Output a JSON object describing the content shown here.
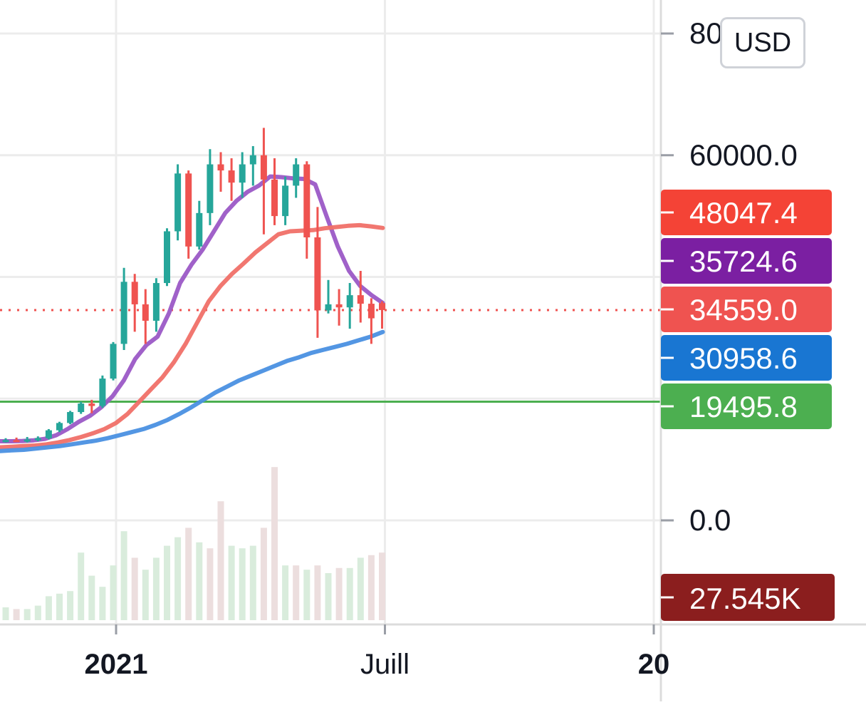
{
  "currency_button": {
    "label": "USD"
  },
  "price_scale": {
    "ticks": [
      {
        "value": 80000,
        "label": "80000.0"
      },
      {
        "value": 60000,
        "label": "60000.0"
      },
      {
        "value": 40000,
        "label": ""
      },
      {
        "value": 20000,
        "label": ""
      },
      {
        "value": 0,
        "label": "0.0"
      }
    ]
  },
  "time_axis": {
    "labels": [
      {
        "text": "2021",
        "bold": true,
        "candle_index": 10
      },
      {
        "text": "Juill",
        "bold": false,
        "candle_index": 35
      },
      {
        "text": "20",
        "bold": true,
        "candle_index": 60
      }
    ]
  },
  "price_labels": [
    {
      "value": 48047.4,
      "text": "48047.4",
      "color": "#f44336",
      "key": "ma-red"
    },
    {
      "value": 35724.6,
      "text": "35724.6",
      "color": "#7b1fa2",
      "key": "ma-purple"
    },
    {
      "value": 34559.0,
      "text": "34559.0",
      "color": "#ef5350",
      "key": "last-price"
    },
    {
      "value": 30958.6,
      "text": "30958.6",
      "color": "#1976d2",
      "key": "ma-blue"
    },
    {
      "value": 19495.8,
      "text": "19495.8",
      "color": "#4caf50",
      "key": "horizontal-line"
    }
  ],
  "volume_label": {
    "text": "27.545K",
    "color": "#8b1e1e"
  },
  "colors": {
    "up": "#26a69a",
    "down": "#ef5350",
    "volume_up": "#d9ecdc",
    "volume_down": "#ecdede",
    "ma_purple": "#9b59c6",
    "ma_red": "#f07068",
    "ma_blue": "#4a90e2",
    "hline": "#4caf50",
    "last_price_line": "#ef5350",
    "grid": "#ececec"
  },
  "chart_data": {
    "type": "candlestick",
    "title": "",
    "timeframe": "weekly",
    "y_range": [
      0,
      80000
    ],
    "grid": true,
    "last_price": 34559.0,
    "horizontal_line": 19495.8,
    "candles": [
      {
        "o": 13000,
        "h": 13500,
        "l": 12800,
        "c": 13200
      },
      {
        "o": 13200,
        "h": 13600,
        "l": 12900,
        "c": 13100
      },
      {
        "o": 13100,
        "h": 13700,
        "l": 12800,
        "c": 13300
      },
      {
        "o": 13300,
        "h": 13800,
        "l": 13000,
        "c": 13500
      },
      {
        "o": 13500,
        "h": 15000,
        "l": 13300,
        "c": 14800
      },
      {
        "o": 14800,
        "h": 16200,
        "l": 14500,
        "c": 16000
      },
      {
        "o": 16000,
        "h": 18000,
        "l": 15800,
        "c": 17800
      },
      {
        "o": 17800,
        "h": 19500,
        "l": 17500,
        "c": 19200
      },
      {
        "o": 19200,
        "h": 19800,
        "l": 17600,
        "c": 18800
      },
      {
        "o": 18800,
        "h": 23800,
        "l": 18500,
        "c": 23300
      },
      {
        "o": 23300,
        "h": 29300,
        "l": 23000,
        "c": 29000
      },
      {
        "o": 29000,
        "h": 41500,
        "l": 28000,
        "c": 39200
      },
      {
        "o": 39200,
        "h": 40500,
        "l": 31000,
        "c": 35500
      },
      {
        "o": 35500,
        "h": 38000,
        "l": 29000,
        "c": 32800
      },
      {
        "o": 32800,
        "h": 39800,
        "l": 31000,
        "c": 39000
      },
      {
        "o": 39000,
        "h": 48000,
        "l": 38500,
        "c": 47500
      },
      {
        "o": 47500,
        "h": 58500,
        "l": 46000,
        "c": 57000
      },
      {
        "o": 57000,
        "h": 57500,
        "l": 43000,
        "c": 45000
      },
      {
        "o": 45000,
        "h": 52500,
        "l": 44500,
        "c": 50500
      },
      {
        "o": 50500,
        "h": 61000,
        "l": 48500,
        "c": 58500
      },
      {
        "o": 58500,
        "h": 60500,
        "l": 54000,
        "c": 57500
      },
      {
        "o": 57500,
        "h": 59500,
        "l": 52500,
        "c": 55500
      },
      {
        "o": 55500,
        "h": 60500,
        "l": 53000,
        "c": 58500
      },
      {
        "o": 58500,
        "h": 61500,
        "l": 55000,
        "c": 60000
      },
      {
        "o": 60000,
        "h": 64500,
        "l": 47000,
        "c": 56000
      },
      {
        "o": 56000,
        "h": 59500,
        "l": 48500,
        "c": 50000
      },
      {
        "o": 50000,
        "h": 56500,
        "l": 48500,
        "c": 55000
      },
      {
        "o": 55000,
        "h": 59500,
        "l": 53000,
        "c": 58500
      },
      {
        "o": 58500,
        "h": 59000,
        "l": 43000,
        "c": 46500
      },
      {
        "o": 46500,
        "h": 51500,
        "l": 30000,
        "c": 34500
      },
      {
        "o": 34500,
        "h": 39500,
        "l": 34000,
        "c": 35500
      },
      {
        "o": 35500,
        "h": 38000,
        "l": 32000,
        "c": 35000
      },
      {
        "o": 35000,
        "h": 39000,
        "l": 31500,
        "c": 37000
      },
      {
        "o": 37000,
        "h": 41000,
        "l": 32500,
        "c": 35600
      },
      {
        "o": 35600,
        "h": 36500,
        "l": 29000,
        "c": 33200
      },
      {
        "o": 35700,
        "h": 36000,
        "l": 31500,
        "c": 34559
      }
    ],
    "volume": [
      {
        "v": 3.0,
        "up": true
      },
      {
        "v": 2.6,
        "up": false
      },
      {
        "v": 2.6,
        "up": true
      },
      {
        "v": 3.4,
        "up": true
      },
      {
        "v": 5.6,
        "up": true
      },
      {
        "v": 6.2,
        "up": true
      },
      {
        "v": 6.8,
        "up": true
      },
      {
        "v": 15.8,
        "up": true
      },
      {
        "v": 10.4,
        "up": true
      },
      {
        "v": 7.8,
        "up": true
      },
      {
        "v": 12.8,
        "up": true
      },
      {
        "v": 20.8,
        "up": true
      },
      {
        "v": 14.6,
        "up": false
      },
      {
        "v": 11.8,
        "up": true
      },
      {
        "v": 14.6,
        "up": true
      },
      {
        "v": 17.4,
        "up": true
      },
      {
        "v": 19.4,
        "up": true
      },
      {
        "v": 21.6,
        "up": false
      },
      {
        "v": 18.2,
        "up": true
      },
      {
        "v": 16.8,
        "up": false
      },
      {
        "v": 27.8,
        "up": false
      },
      {
        "v": 17.4,
        "up": true
      },
      {
        "v": 16.8,
        "up": true
      },
      {
        "v": 17.4,
        "up": true
      },
      {
        "v": 21.6,
        "up": false
      },
      {
        "v": 35.8,
        "up": false
      },
      {
        "v": 12.8,
        "up": true
      },
      {
        "v": 12.8,
        "up": false
      },
      {
        "v": 11.8,
        "up": true
      },
      {
        "v": 12.8,
        "up": false
      },
      {
        "v": 11.0,
        "up": true
      },
      {
        "v": 12.2,
        "up": false
      },
      {
        "v": 12.2,
        "up": true
      },
      {
        "v": 14.6,
        "up": true
      },
      {
        "v": 15.2,
        "up": false
      },
      {
        "v": 15.8,
        "up": false
      }
    ],
    "series": [
      {
        "name": "",
        "type": "line",
        "color": "#9b59c6",
        "last_value": 35724.6,
        "values": [
          13000,
          13000,
          13050,
          13150,
          13400,
          14000,
          15000,
          16200,
          17200,
          18600,
          20400,
          23000,
          26500,
          28800,
          30200,
          34000,
          39000,
          42000,
          44500,
          47500,
          50500,
          52500,
          54000,
          55000,
          56500,
          56400,
          56200,
          56100,
          55200,
          50000,
          45000,
          41000,
          38500,
          37000,
          35724.6
        ]
      },
      {
        "name": "",
        "type": "line",
        "color": "#f07068",
        "last_value": 48047.4,
        "values": [
          12000,
          12100,
          12200,
          12300,
          12500,
          12800,
          13200,
          13700,
          14300,
          15000,
          16000,
          17500,
          19500,
          21500,
          23500,
          26000,
          29000,
          32500,
          36000,
          38500,
          40500,
          42200,
          44000,
          45500,
          47000,
          47500,
          47600,
          47700,
          48000,
          48200,
          48400,
          48500,
          48300,
          48047.4
        ]
      },
      {
        "name": "",
        "type": "line",
        "color": "#4a90e2",
        "last_value": 30958.6,
        "values": [
          11400,
          11500,
          11600,
          11800,
          12000,
          12200,
          12500,
          12800,
          13100,
          13500,
          14000,
          14500,
          15000,
          15700,
          16500,
          17500,
          18600,
          19800,
          21000,
          22000,
          23000,
          23800,
          24600,
          25400,
          26200,
          26800,
          27500,
          28000,
          28500,
          29000,
          29600,
          30200,
          30958.6
        ]
      }
    ],
    "volume_label": "27.545K"
  }
}
